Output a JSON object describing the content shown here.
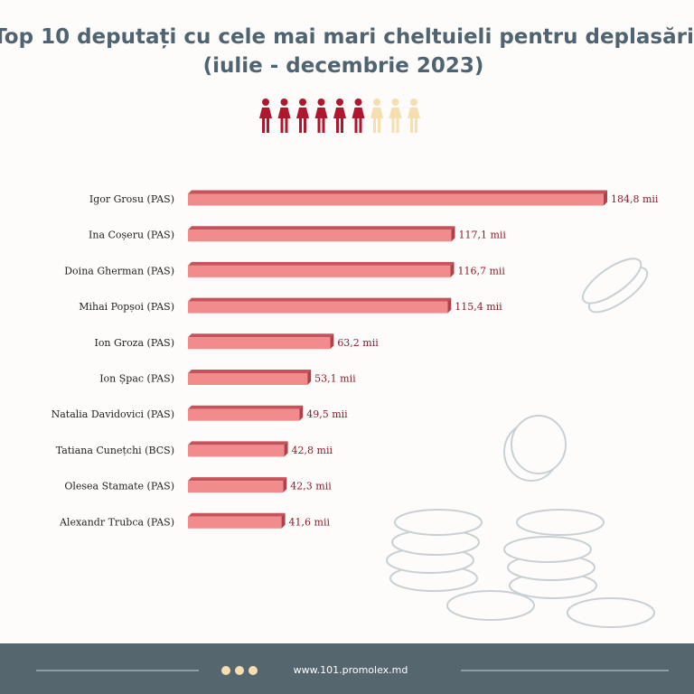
{
  "chart_data": {
    "type": "bar",
    "title": "Top 10 deputați cu cele mai mari cheltuieli pentru deplasări",
    "subtitle": "(iulie - decembrie 2023)",
    "categories": [
      "Igor Grosu (PAS)",
      "Ina Coșeru (PAS)",
      "Doina Gherman (PAS)",
      "Mihai Popșoi (PAS)",
      "Ion Groza (PAS)",
      "Ion Șpac (PAS)",
      "Natalia Davidovici (PAS)",
      "Tatiana Cunețchi (BCS)",
      "Olesea Stamate (PAS)",
      "Alexandr Trubca (PAS)"
    ],
    "values": [
      184.8,
      117.1,
      116.7,
      115.4,
      63.2,
      53.1,
      49.5,
      42.8,
      42.3,
      41.6
    ],
    "value_labels": [
      "184,8 mii",
      "117,1 mii",
      "116,7 mii",
      "115,4 mii",
      "63,2 mii",
      "53,1 mii",
      "49,5 mii",
      "42,8 mii",
      "42,3 mii",
      "41,6 mii"
    ],
    "color": "#f28b8b"
  },
  "footer": {
    "url": "www.101.promolex.md"
  }
}
